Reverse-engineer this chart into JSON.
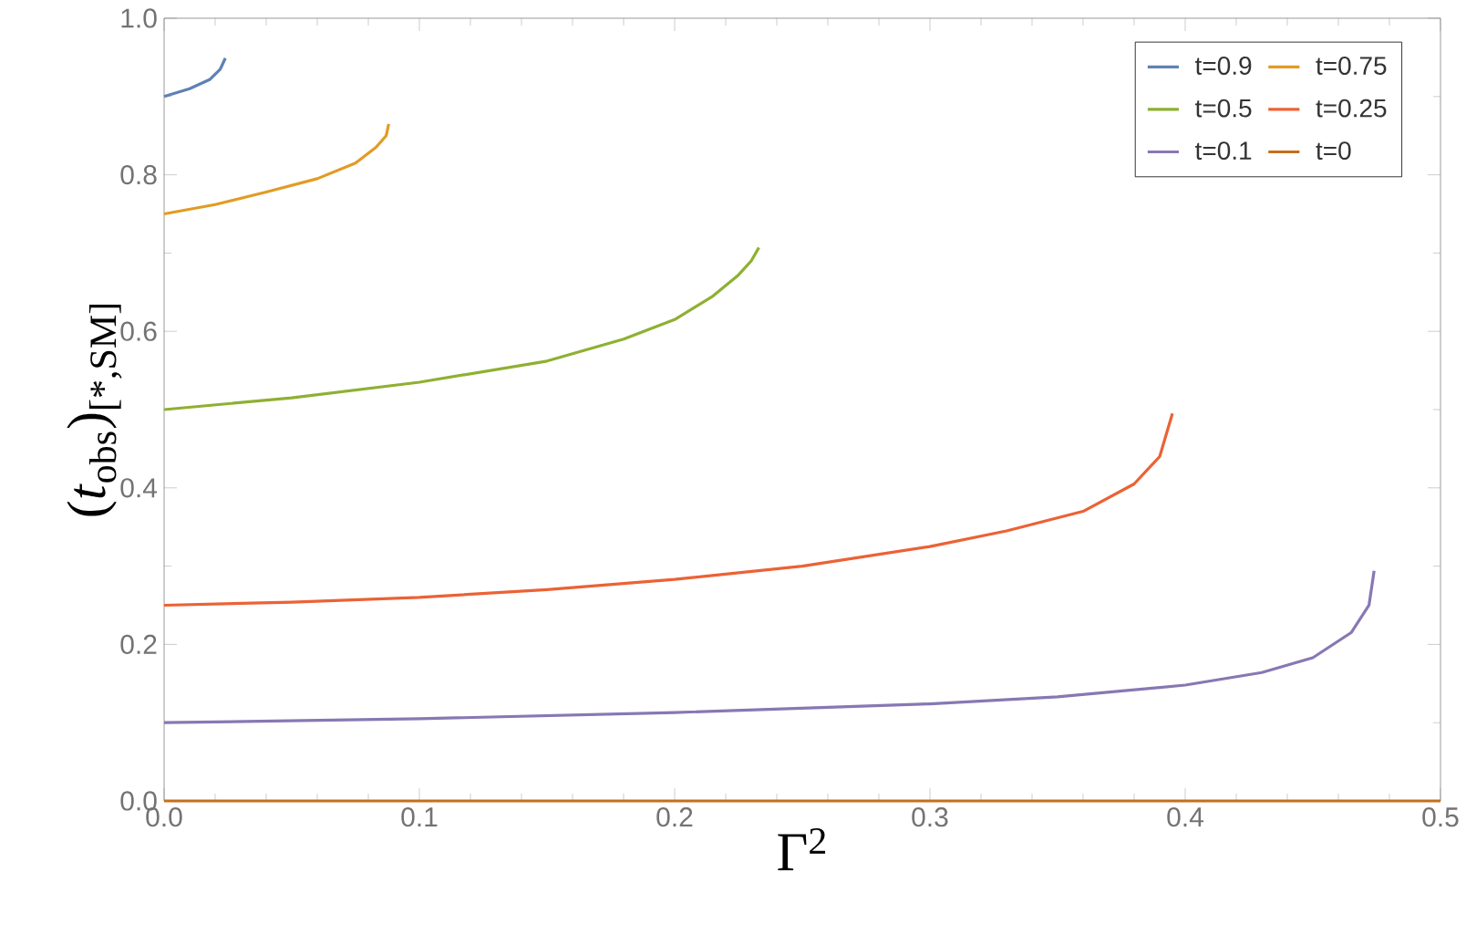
{
  "chart_data": {
    "type": "line",
    "xlabel": "Γ$^{2}$",
    "ylabel": "(*t*$_{obs}$)$_{[*,SM]}$",
    "xlim": [
      0,
      0.5
    ],
    "ylim": [
      0,
      1
    ],
    "xticks": [
      {
        "value": 0,
        "label": "0.0"
      },
      0.1,
      0.2,
      0.3,
      0.4,
      0.5
    ],
    "yticks": [
      {
        "value": 0,
        "label": "0.0"
      },
      0.2,
      0.4,
      0.6,
      0.8,
      {
        "value": 1,
        "label": "1.0"
      }
    ],
    "legend": "top right",
    "series": [
      {
        "name": "t=0.9",
        "color": "#5e81b5",
        "x": [
          0,
          0.01,
          0.018,
          0.022,
          0.024
        ],
        "values": [
          0.9,
          0.91,
          0.922,
          0.935,
          0.949
        ]
      },
      {
        "name": "t=0.75",
        "color": "#e19c24",
        "x": [
          0,
          0.02,
          0.04,
          0.06,
          0.075,
          0.083,
          0.087,
          0.088
        ],
        "values": [
          0.75,
          0.762,
          0.778,
          0.795,
          0.815,
          0.835,
          0.85,
          0.865
        ]
      },
      {
        "name": "t=0.5",
        "color": "#8fb032",
        "x": [
          0,
          0.05,
          0.1,
          0.15,
          0.18,
          0.2,
          0.215,
          0.225,
          0.23,
          0.233
        ],
        "values": [
          0.5,
          0.515,
          0.535,
          0.562,
          0.59,
          0.615,
          0.645,
          0.672,
          0.69,
          0.707
        ]
      },
      {
        "name": "t=0.25",
        "color": "#eb6235",
        "x": [
          0,
          0.05,
          0.1,
          0.15,
          0.2,
          0.25,
          0.3,
          0.33,
          0.36,
          0.38,
          0.39,
          0.395
        ],
        "values": [
          0.25,
          0.254,
          0.26,
          0.27,
          0.283,
          0.3,
          0.325,
          0.345,
          0.37,
          0.405,
          0.44,
          0.495
        ]
      },
      {
        "name": "t=0.1",
        "color": "#8778b3",
        "x": [
          0,
          0.1,
          0.2,
          0.3,
          0.35,
          0.4,
          0.43,
          0.45,
          0.465,
          0.472,
          0.474
        ],
        "values": [
          0.1,
          0.105,
          0.113,
          0.124,
          0.133,
          0.148,
          0.164,
          0.183,
          0.215,
          0.25,
          0.294
        ]
      },
      {
        "name": "t=0",
        "color": "#c56e1a",
        "x": [
          0,
          0.5
        ],
        "values": [
          0,
          0
        ]
      }
    ]
  }
}
